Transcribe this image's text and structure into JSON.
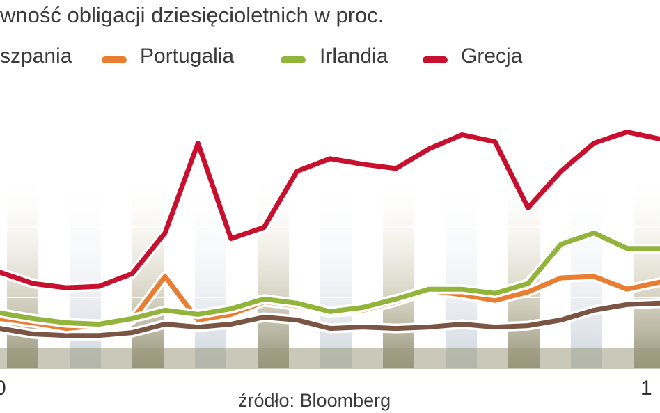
{
  "chart_data": {
    "type": "line",
    "title": "wność obligacji dziesięcioletnich w proc.",
    "source": "źródło: Bloomberg",
    "x_tick_labels": [
      "0",
      "1"
    ],
    "grid": true,
    "legend_placement": "top",
    "background_bands": true,
    "x": [
      0,
      5,
      10,
      15,
      20,
      25,
      30,
      35,
      40,
      45,
      50,
      55,
      60,
      65,
      70,
      75,
      80,
      85,
      90,
      95,
      100
    ],
    "series": [
      {
        "name": "Grecja",
        "color": "#c8102e",
        "values": [
          6.8,
          6.0,
          5.7,
          5.8,
          6.7,
          9.6,
          16.0,
          9.2,
          10.0,
          14.0,
          14.9,
          14.5,
          14.2,
          15.6,
          16.6,
          16.1,
          11.4,
          14.0,
          16.0,
          16.8,
          16.3
        ]
      },
      {
        "name": "Irlandia",
        "color": "#92b43a",
        "values": [
          3.9,
          3.5,
          3.2,
          3.1,
          3.5,
          4.1,
          3.8,
          4.2,
          4.9,
          4.6,
          4.0,
          4.3,
          4.9,
          5.6,
          5.6,
          5.3,
          6.0,
          8.8,
          9.6,
          8.5,
          8.5
        ]
      },
      {
        "name": "Portugalia",
        "color": "#e97e33",
        "values": [
          3.5,
          3.2,
          2.8,
          3.0,
          3.4,
          6.5,
          3.4,
          3.8,
          4.7,
          4.4,
          3.9,
          4.1,
          4.7,
          5.5,
          5.2,
          4.8,
          5.4,
          6.4,
          6.5,
          5.6,
          6.1
        ]
      },
      {
        "name": "Hiszpania",
        "color": "#7a5544",
        "values": [
          2.8,
          2.4,
          2.3,
          2.3,
          2.5,
          3.1,
          2.9,
          3.1,
          3.6,
          3.4,
          2.8,
          2.9,
          2.8,
          2.9,
          3.1,
          2.9,
          3.0,
          3.4,
          4.1,
          4.5,
          4.6
        ]
      }
    ],
    "ylim": [
      0,
      20
    ]
  },
  "legend": [
    {
      "label": "szpania",
      "color": "#7a5544"
    },
    {
      "label": "Portugalia",
      "color": "#e97e33"
    },
    {
      "label": "Irlandia",
      "color": "#92b43a"
    },
    {
      "label": "Grecja",
      "color": "#c8102e"
    }
  ]
}
